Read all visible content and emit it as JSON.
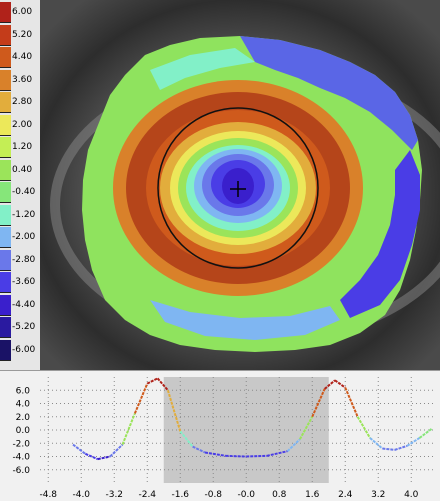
{
  "colors": {
    "background_dark": "#2b2b2b",
    "iris_dark": "#1a1a1a",
    "ring_line": "#111111",
    "center_mark": "#000000",
    "profile_bg": "#f1f1f1",
    "profile_shade": "#c8c8c8",
    "grid_dot": "#8a8a8a"
  },
  "legend": [
    {
      "label": "6.00",
      "color": "#b0221a"
    },
    {
      "label": "5.20",
      "color": "#c43c1a"
    },
    {
      "label": "4.40",
      "color": "#cf5a1c"
    },
    {
      "label": "3.60",
      "color": "#d9812a"
    },
    {
      "label": "2.80",
      "color": "#e2ad3c"
    },
    {
      "label": "2.00",
      "color": "#ece85a"
    },
    {
      "label": "1.20",
      "color": "#c4ee55"
    },
    {
      "label": "0.40",
      "color": "#9be45a"
    },
    {
      "label": "-0.40",
      "color": "#86e67a"
    },
    {
      "label": "-1.20",
      "color": "#82f0c8"
    },
    {
      "label": "-2.00",
      "color": "#7fb6f2"
    },
    {
      "label": "-2.80",
      "color": "#6a78ea"
    },
    {
      "label": "-3.60",
      "color": "#4a3de6"
    },
    {
      "label": "-4.40",
      "color": "#3a1fcc"
    },
    {
      "label": "-5.20",
      "color": "#2a1aa0"
    },
    {
      "label": "-6.00",
      "color": "#1a1266"
    }
  ],
  "profile": {
    "y_ticks": [
      "6.0",
      "4.0",
      "2.0",
      "0.0",
      "-2.0",
      "-4.0",
      "-6.0"
    ],
    "x_ticks": [
      "-4.8",
      "-4.0",
      "-3.2",
      "-2.4",
      "-1.6",
      "-0.8",
      "-0.0",
      "0.8",
      "1.6",
      "2.4",
      "3.2",
      "4.0"
    ],
    "y_range": [
      -8,
      8
    ],
    "x_range": [
      -5.0,
      4.6
    ],
    "shaded_region": [
      -2.0,
      2.0
    ],
    "curve_points": [
      {
        "x": -4.2,
        "y": -2.2
      },
      {
        "x": -3.9,
        "y": -3.6
      },
      {
        "x": -3.6,
        "y": -4.4
      },
      {
        "x": -3.3,
        "y": -4.0
      },
      {
        "x": -3.0,
        "y": -2.2
      },
      {
        "x": -2.7,
        "y": 2.5
      },
      {
        "x": -2.4,
        "y": 7.0
      },
      {
        "x": -2.15,
        "y": 7.8
      },
      {
        "x": -1.9,
        "y": 6.0
      },
      {
        "x": -1.6,
        "y": -0.2
      },
      {
        "x": -1.3,
        "y": -2.5
      },
      {
        "x": -1.0,
        "y": -3.4
      },
      {
        "x": -0.5,
        "y": -3.9
      },
      {
        "x": 0.0,
        "y": -4.0
      },
      {
        "x": 0.5,
        "y": -3.9
      },
      {
        "x": 1.0,
        "y": -3.2
      },
      {
        "x": 1.3,
        "y": -1.4
      },
      {
        "x": 1.6,
        "y": 2.0
      },
      {
        "x": 1.9,
        "y": 6.2
      },
      {
        "x": 2.15,
        "y": 7.5
      },
      {
        "x": 2.4,
        "y": 6.4
      },
      {
        "x": 2.7,
        "y": 2.0
      },
      {
        "x": 3.0,
        "y": -1.2
      },
      {
        "x": 3.3,
        "y": -2.8
      },
      {
        "x": 3.6,
        "y": -3.0
      },
      {
        "x": 3.9,
        "y": -2.4
      },
      {
        "x": 4.2,
        "y": -1.2
      },
      {
        "x": 4.5,
        "y": 0.2
      }
    ]
  }
}
